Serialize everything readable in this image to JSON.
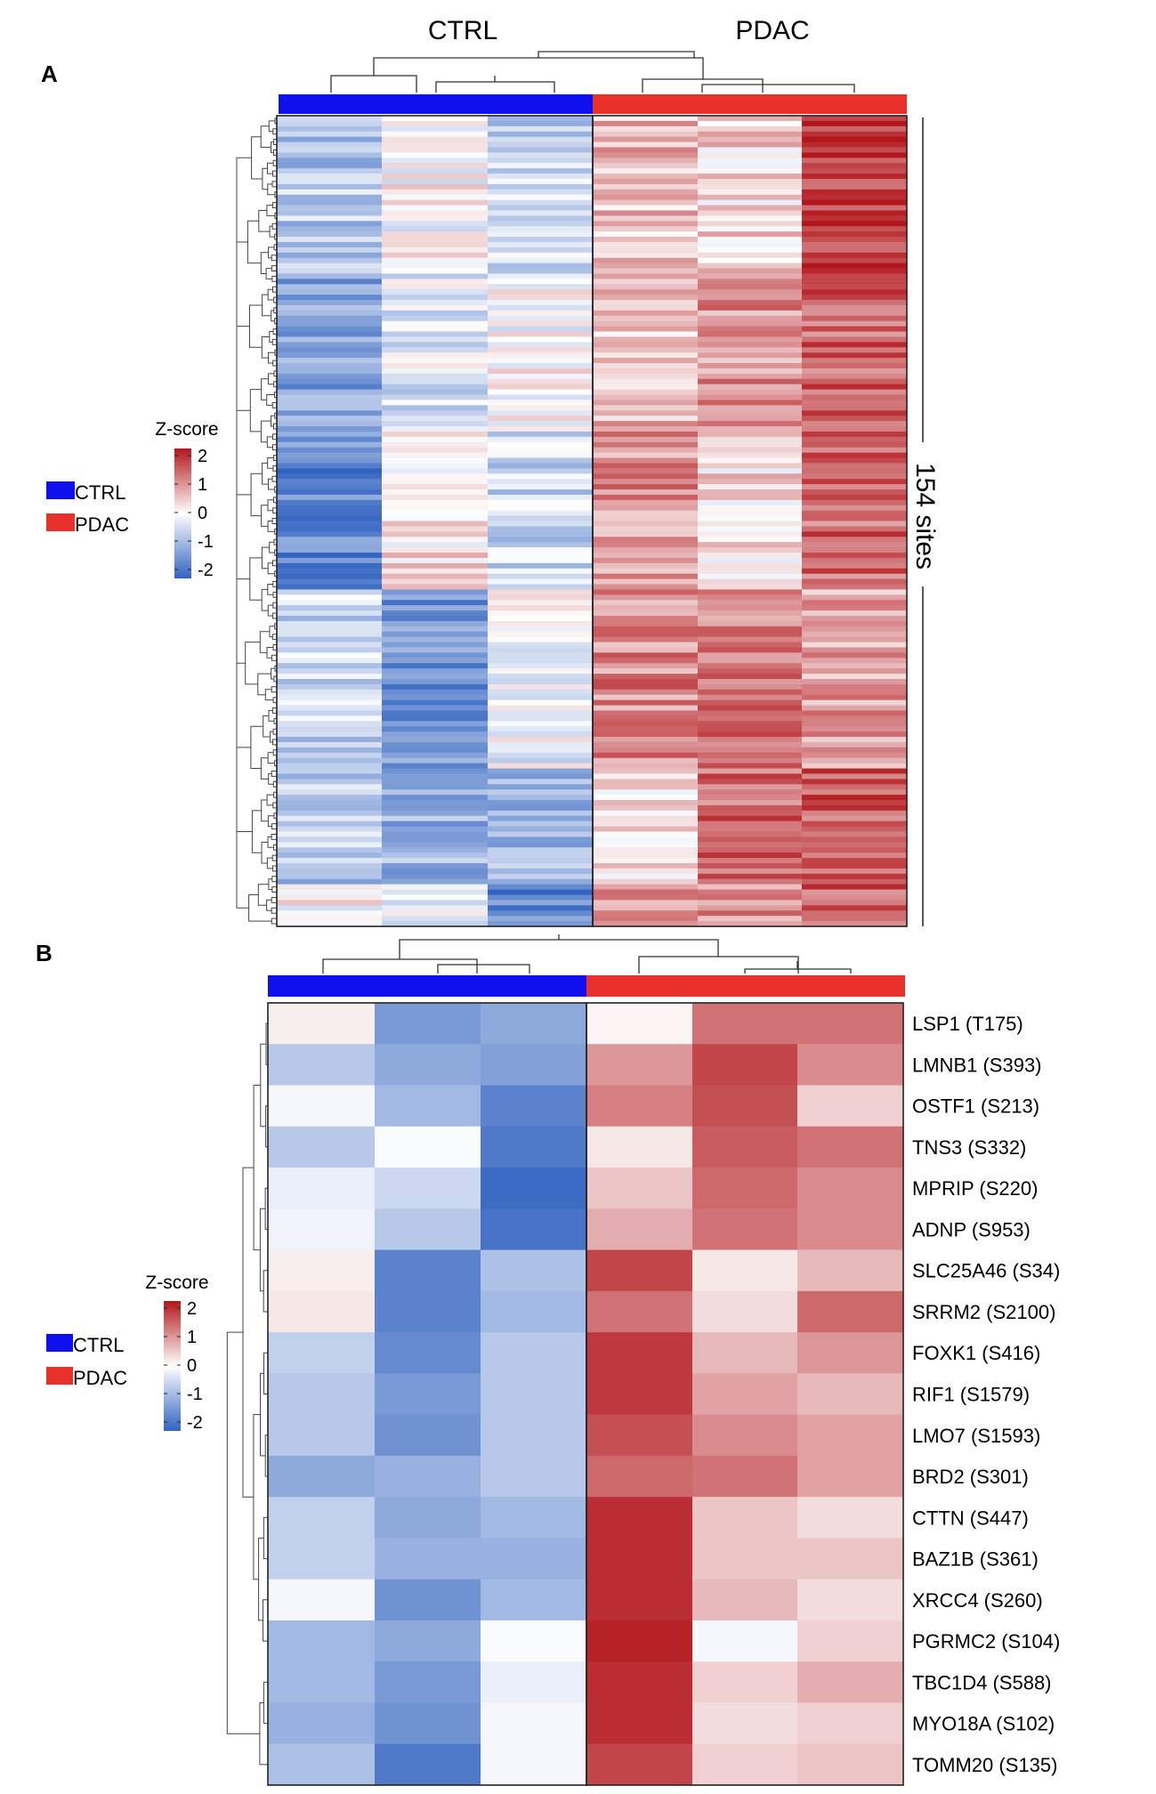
{
  "figure": {
    "panel_a_label": "A",
    "panel_b_label": "B"
  },
  "colors": {
    "ctrl": "#1010ee",
    "pdac": "#e8312a",
    "low": "#3163c0",
    "mid": "#ffffff",
    "high": "#b2161b"
  },
  "chart_data": [
    {
      "type": "heatmap",
      "panel": "A",
      "title": "",
      "group_labels": [
        "CTRL",
        "PDAC"
      ],
      "groups": [
        "CTRL",
        "CTRL",
        "CTRL",
        "PDAC",
        "PDAC",
        "PDAC"
      ],
      "row_count": 154,
      "row_count_label": "154 sites",
      "legend": {
        "title": "Z-score",
        "ticks": [
          "2",
          "1",
          "0",
          "-1",
          "-2"
        ],
        "tick_values": [
          2,
          1,
          0,
          -1,
          -2
        ],
        "range": [
          -2,
          2
        ],
        "groups": [
          "CTRL",
          "PDAC"
        ]
      },
      "column_means": [
        -1.0,
        -0.45,
        -0.35,
        0.65,
        0.7,
        1.25
      ],
      "row_block_profiles": [
        {
          "rows": 30,
          "values": [
            -0.7,
            0.0,
            -0.6,
            0.6,
            0.3,
            1.7
          ]
        },
        {
          "rows": 30,
          "values": [
            -1.1,
            -0.3,
            0.0,
            0.6,
            0.9,
            1.3
          ]
        },
        {
          "rows": 30,
          "values": [
            -1.5,
            0.2,
            -0.5,
            0.9,
            0.3,
            1.3
          ]
        },
        {
          "rows": 34,
          "values": [
            -0.5,
            -1.4,
            -0.1,
            1.0,
            1.1,
            0.8
          ]
        },
        {
          "rows": 22,
          "values": [
            -0.7,
            -1.0,
            -0.9,
            0.3,
            1.3,
            1.4
          ]
        },
        {
          "rows": 8,
          "values": [
            0.0,
            -0.1,
            -1.5,
            0.9,
            1.0,
            1.3
          ]
        }
      ]
    },
    {
      "type": "heatmap",
      "panel": "B",
      "title": "",
      "groups": [
        "CTRL",
        "CTRL",
        "CTRL",
        "PDAC",
        "PDAC",
        "PDAC"
      ],
      "legend": {
        "title": "Z-score",
        "ticks": [
          "2",
          "1",
          "0",
          "-1",
          "-2"
        ],
        "tick_values": [
          2,
          1,
          0,
          -1,
          -2
        ],
        "range": [
          -2,
          2
        ],
        "groups": [
          "CTRL",
          "PDAC"
        ]
      },
      "rows": [
        "LSP1 (T175)",
        "LMNB1 (S393)",
        "OSTF1 (S213)",
        "TNS3 (S332)",
        "MPRIP (S220)",
        "ADNP (S953)",
        "SLC25A46 (S34)",
        "SRRM2 (S2100)",
        "FOXK1 (S416)",
        "RIF1 (S1579)",
        "LMO7 (S1593)",
        "BRD2 (S301)",
        "CTTN (S447)",
        "BAZ1B (S361)",
        "XRCC4 (S260)",
        "PGRMC2 (S104)",
        "TBC1D4 (S588)",
        "MYO18A (S102)",
        "TOMM20 (S135)"
      ],
      "values": [
        [
          0.15,
          -1.3,
          -1.1,
          0.1,
          1.2,
          1.2
        ],
        [
          -0.7,
          -1.1,
          -1.2,
          0.9,
          1.6,
          1.0
        ],
        [
          -0.1,
          -0.9,
          -1.6,
          1.1,
          1.5,
          0.4
        ],
        [
          -0.7,
          -0.05,
          -1.7,
          0.2,
          1.4,
          1.2
        ],
        [
          -0.2,
          -0.5,
          -1.9,
          0.5,
          1.3,
          1.0
        ],
        [
          -0.15,
          -0.7,
          -1.8,
          0.7,
          1.2,
          1.0
        ],
        [
          0.15,
          -1.6,
          -0.8,
          1.6,
          0.2,
          0.6
        ],
        [
          0.2,
          -1.6,
          -0.9,
          1.2,
          0.3,
          1.3
        ],
        [
          -0.6,
          -1.5,
          -0.7,
          1.7,
          0.6,
          0.9
        ],
        [
          -0.7,
          -1.3,
          -0.7,
          1.7,
          0.8,
          0.6
        ],
        [
          -0.7,
          -1.4,
          -0.7,
          1.5,
          1.0,
          0.8
        ],
        [
          -1.1,
          -1.0,
          -0.7,
          1.3,
          1.2,
          0.8
        ],
        [
          -0.6,
          -1.1,
          -0.9,
          1.8,
          0.5,
          0.3
        ],
        [
          -0.6,
          -1.0,
          -1.0,
          1.8,
          0.5,
          0.5
        ],
        [
          -0.1,
          -1.4,
          -0.9,
          1.8,
          0.6,
          0.3
        ],
        [
          -0.9,
          -1.1,
          -0.05,
          1.9,
          -0.1,
          0.4
        ],
        [
          -0.9,
          -1.3,
          -0.2,
          1.8,
          0.4,
          0.7
        ],
        [
          -1.0,
          -1.4,
          -0.1,
          1.8,
          0.3,
          0.4
        ],
        [
          -0.8,
          -1.7,
          -0.1,
          1.6,
          0.4,
          0.5
        ]
      ]
    }
  ]
}
